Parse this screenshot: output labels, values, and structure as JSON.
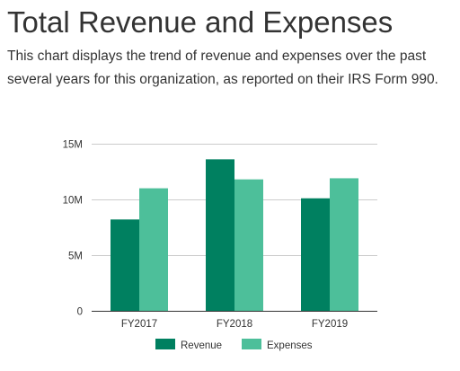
{
  "page": {
    "title": "Total Revenue and Expenses",
    "description": "This chart displays the trend of revenue and expenses over the past several years for this organization, as reported on their IRS Form 990."
  },
  "colors": {
    "revenue": "#008060",
    "expenses": "#4dbf9a",
    "gridline": "#cccccc",
    "baseline": "#333333",
    "text": "#333333"
  },
  "chart_data": {
    "type": "bar",
    "categories": [
      "FY2017",
      "FY2018",
      "FY2019"
    ],
    "series": [
      {
        "name": "Revenue",
        "values": [
          8200000,
          13600000,
          10100000
        ]
      },
      {
        "name": "Expenses",
        "values": [
          11000000,
          11800000,
          11900000
        ]
      }
    ],
    "yticks": [
      0,
      5000000,
      10000000,
      15000000
    ],
    "ytick_labels": [
      "0",
      "5M",
      "10M",
      "15M"
    ],
    "ylim": [
      0,
      15000000
    ],
    "grid": true,
    "legend": "bottom",
    "title": "",
    "xlabel": "",
    "ylabel": ""
  }
}
